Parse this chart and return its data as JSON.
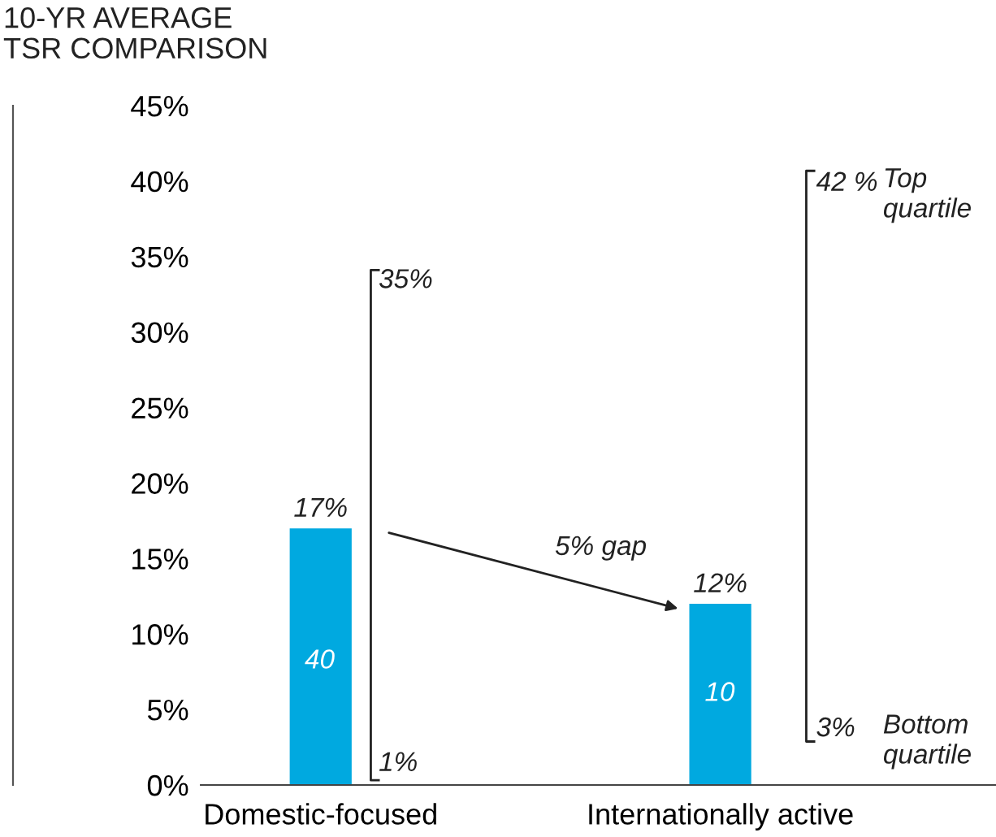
{
  "chart_data": {
    "type": "bar",
    "title": "10-YR AVERAGE\nTSR COMPARISON",
    "categories": [
      "Domestic-focused",
      "Internationally active"
    ],
    "values": [
      17,
      12
    ],
    "color": "#00a9e0",
    "value_labels": [
      "17%",
      "12%"
    ],
    "ylim": [
      0,
      45
    ],
    "yticks": [
      {
        "value": 0,
        "label": "0%"
      },
      {
        "value": 5,
        "label": "5%"
      },
      {
        "value": 10,
        "label": "10%"
      },
      {
        "value": 15,
        "label": "15%"
      },
      {
        "value": 20,
        "label": "20%"
      },
      {
        "value": 25,
        "label": "25%"
      },
      {
        "value": 30,
        "label": "30%"
      },
      {
        "value": 35,
        "label": "35%"
      },
      {
        "value": 40,
        "label": "40%"
      },
      {
        "value": 45,
        "label": "45%"
      }
    ],
    "grid": false,
    "annotations": [
      "40",
      "10",
      "35%",
      "1%",
      "42 %",
      "Top quartile",
      "3%",
      "Bottom quartile",
      "5% gap"
    ]
  }
}
